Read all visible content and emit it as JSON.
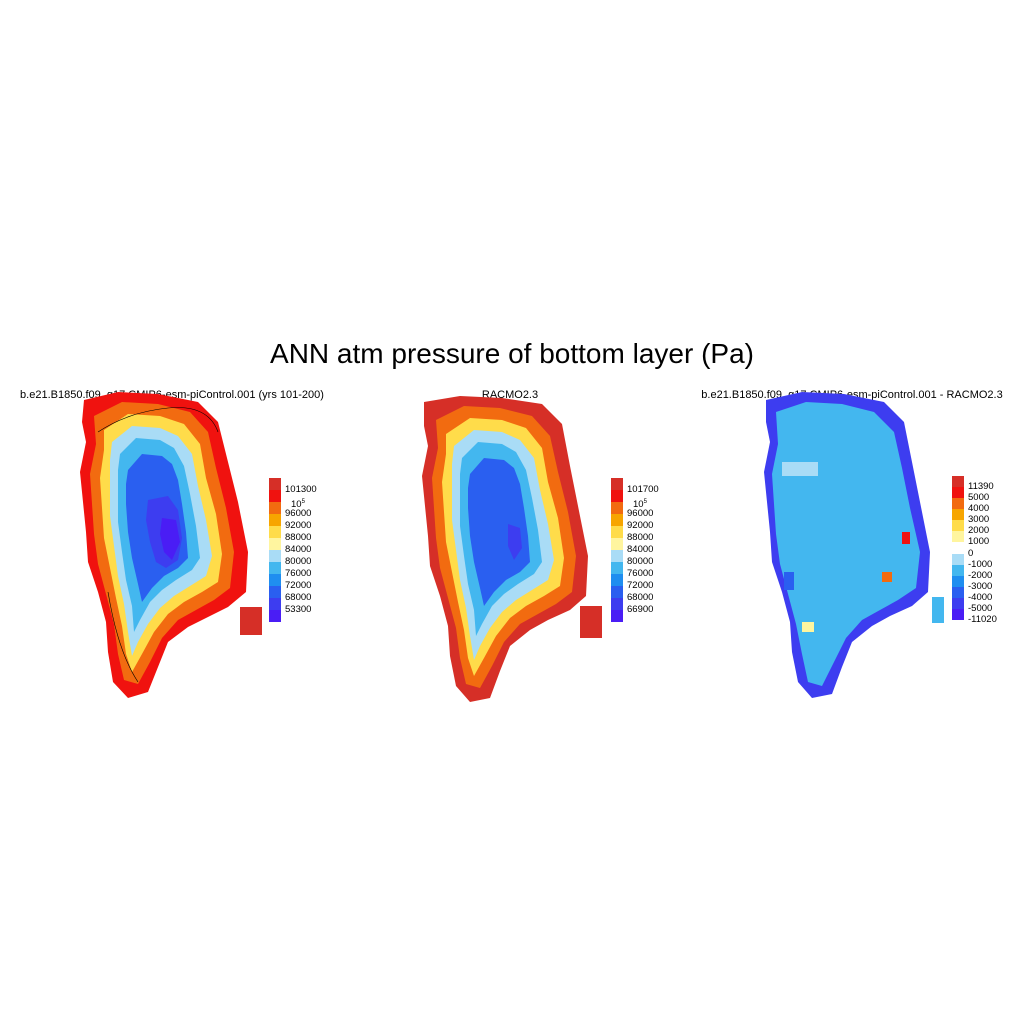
{
  "title": "ANN atm pressure of bottom layer (Pa)",
  "panels": [
    {
      "title": "b.e21.B1850.f09_g17.CMIP6-esm-piControl.001 (yrs 101-200)",
      "colorbar": {
        "labels": [
          "101300",
          "10^5",
          "96000",
          "92000",
          "88000",
          "84000",
          "80000",
          "76000",
          "72000",
          "68000",
          "53300"
        ],
        "colors": [
          "#d62f27",
          "#f0120f",
          "#f26b10",
          "#f7a500",
          "#ffdc4a",
          "#fff59f",
          "#a9dcf6",
          "#43b7ef",
          "#1f8ef0",
          "#2a5ff0",
          "#3d3df0",
          "#4a1df5"
        ]
      }
    },
    {
      "title": "RACMO2.3",
      "colorbar": {
        "labels": [
          "101700",
          "10^5",
          "96000",
          "92000",
          "88000",
          "84000",
          "80000",
          "76000",
          "72000",
          "68000",
          "66900"
        ],
        "colors": [
          "#d62f27",
          "#f0120f",
          "#f26b10",
          "#f7a500",
          "#ffdc4a",
          "#fff59f",
          "#a9dcf6",
          "#43b7ef",
          "#1f8ef0",
          "#2a5ff0",
          "#3d3df0",
          "#4a1df5"
        ]
      }
    },
    {
      "title": "b.e21.B1850.f09_g17.CMIP6-esm-piControl.001 - RACMO2.3",
      "colorbar": {
        "labels": [
          "11390",
          "5000",
          "4000",
          "3000",
          "2000",
          "1000",
          "0",
          "-1000",
          "-2000",
          "-3000",
          "-4000",
          "-5000",
          "-11020"
        ],
        "colors": [
          "#d62f27",
          "#f0120f",
          "#f26b10",
          "#f7a500",
          "#ffdc4a",
          "#fff59f",
          "#ffffff",
          "#a9dcf6",
          "#43b7ef",
          "#1f8ef0",
          "#2a5ff0",
          "#3d3df0",
          "#4a1df5"
        ]
      }
    }
  ]
}
